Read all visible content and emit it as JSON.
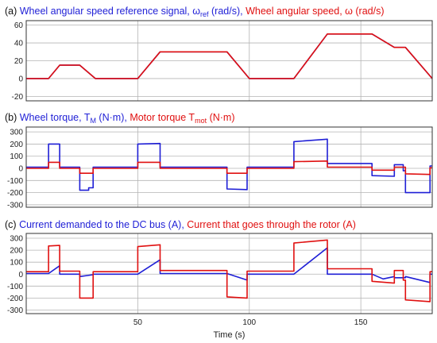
{
  "xlabel": "Time (s)",
  "xlim": [
    0,
    182
  ],
  "xticks": [
    50,
    100,
    150
  ],
  "colors": {
    "blue": "#1f1fd6",
    "red": "#e01010",
    "grid": "#b4b4b4"
  },
  "chart_data": [
    {
      "type": "line",
      "label": "(a)",
      "title_parts": [
        {
          "text": "Wheel angular speed reference signal, ω",
          "color": "blue"
        },
        {
          "text": "ref",
          "color": "blue",
          "sub": true
        },
        {
          "text": " (rad/s), ",
          "color": "blue"
        },
        {
          "text": "Wheel angular speed, ω (rad/s)",
          "color": "red"
        }
      ],
      "ylim": [
        -25,
        65
      ],
      "yticks": [
        -20,
        0,
        20,
        40,
        60
      ],
      "series": [
        {
          "color": "blue",
          "x": [
            0,
            10,
            15,
            24,
            31,
            50,
            60,
            90,
            100,
            120,
            135,
            155,
            165,
            170,
            182
          ],
          "y": [
            0,
            0,
            15,
            15,
            0,
            0,
            30,
            30,
            0,
            0,
            50,
            50,
            35,
            35,
            0
          ]
        },
        {
          "color": "red",
          "x": [
            0,
            10,
            15,
            24,
            31,
            50,
            60,
            90,
            100,
            120,
            135,
            155,
            165,
            170,
            182
          ],
          "y": [
            0,
            0,
            15,
            15,
            0,
            0,
            30,
            30,
            0,
            0,
            50,
            50,
            35,
            35,
            0
          ]
        }
      ]
    },
    {
      "type": "line",
      "label": "(b)",
      "title_parts": [
        {
          "text": "Wheel torque, T",
          "color": "blue"
        },
        {
          "text": "M",
          "color": "blue",
          "sub": true
        },
        {
          "text": " (N·m), ",
          "color": "blue"
        },
        {
          "text": "Motor torque T",
          "color": "red"
        },
        {
          "text": "mot",
          "color": "red",
          "sub": true
        },
        {
          "text": " (N·m)",
          "color": "red"
        }
      ],
      "ylim": [
        -320,
        340
      ],
      "yticks": [
        -300,
        -200,
        -100,
        0,
        100,
        200,
        300
      ],
      "series": [
        {
          "color": "blue",
          "x": [
            0,
            10,
            10,
            15,
            15,
            24,
            24,
            28,
            28,
            30,
            30,
            50,
            50,
            60,
            60,
            90,
            90,
            99,
            99,
            120,
            120,
            135,
            135,
            155,
            155,
            165,
            165,
            169,
            169,
            170,
            170,
            181,
            181,
            182
          ],
          "y": [
            10,
            10,
            200,
            200,
            10,
            10,
            -180,
            -180,
            -160,
            -160,
            10,
            10,
            200,
            205,
            10,
            10,
            -170,
            -175,
            10,
            10,
            220,
            240,
            40,
            40,
            -60,
            -65,
            30,
            30,
            -20,
            -20,
            -200,
            -200,
            20,
            20
          ]
        },
        {
          "color": "red",
          "x": [
            0,
            10,
            10,
            15,
            15,
            24,
            24,
            30,
            30,
            50,
            50,
            60,
            60,
            90,
            90,
            99,
            99,
            120,
            120,
            135,
            135,
            155,
            155,
            165,
            165,
            170,
            170,
            181,
            181,
            182
          ],
          "y": [
            0,
            0,
            50,
            50,
            0,
            0,
            -40,
            -40,
            0,
            0,
            50,
            50,
            0,
            0,
            -40,
            -40,
            0,
            0,
            55,
            60,
            10,
            10,
            -15,
            -15,
            10,
            10,
            -45,
            -50,
            5,
            5
          ]
        }
      ]
    },
    {
      "type": "line",
      "label": "(c)",
      "title_parts": [
        {
          "text": "Current demanded to the DC bus (A), ",
          "color": "blue"
        },
        {
          "text": "Current that goes through the rotor (A)",
          "color": "red"
        }
      ],
      "ylim": [
        -330,
        340
      ],
      "yticks": [
        -300,
        -200,
        -100,
        0,
        100,
        200,
        300
      ],
      "series": [
        {
          "color": "blue",
          "x": [
            0,
            10,
            15,
            15,
            24,
            24,
            30,
            30,
            50,
            60,
            60,
            90,
            99,
            99,
            120,
            135,
            135,
            155,
            160,
            165,
            165,
            170,
            170,
            181,
            181,
            182
          ],
          "y": [
            5,
            5,
            70,
            0,
            0,
            -20,
            -5,
            0,
            0,
            120,
            5,
            5,
            -50,
            0,
            0,
            220,
            0,
            0,
            -40,
            -20,
            -30,
            -30,
            -20,
            -70,
            0,
            0
          ]
        },
        {
          "color": "red",
          "x": [
            0,
            10,
            10,
            15,
            15,
            24,
            24,
            30,
            30,
            50,
            50,
            60,
            60,
            90,
            90,
            99,
            99,
            120,
            120,
            135,
            135,
            155,
            155,
            165,
            165,
            169,
            169,
            170,
            170,
            181,
            181,
            182
          ],
          "y": [
            20,
            20,
            235,
            240,
            25,
            25,
            -200,
            -200,
            20,
            20,
            230,
            245,
            30,
            30,
            -190,
            -200,
            25,
            25,
            260,
            285,
            45,
            45,
            -60,
            -75,
            30,
            30,
            -50,
            -50,
            -215,
            -230,
            20,
            20
          ]
        }
      ]
    }
  ]
}
